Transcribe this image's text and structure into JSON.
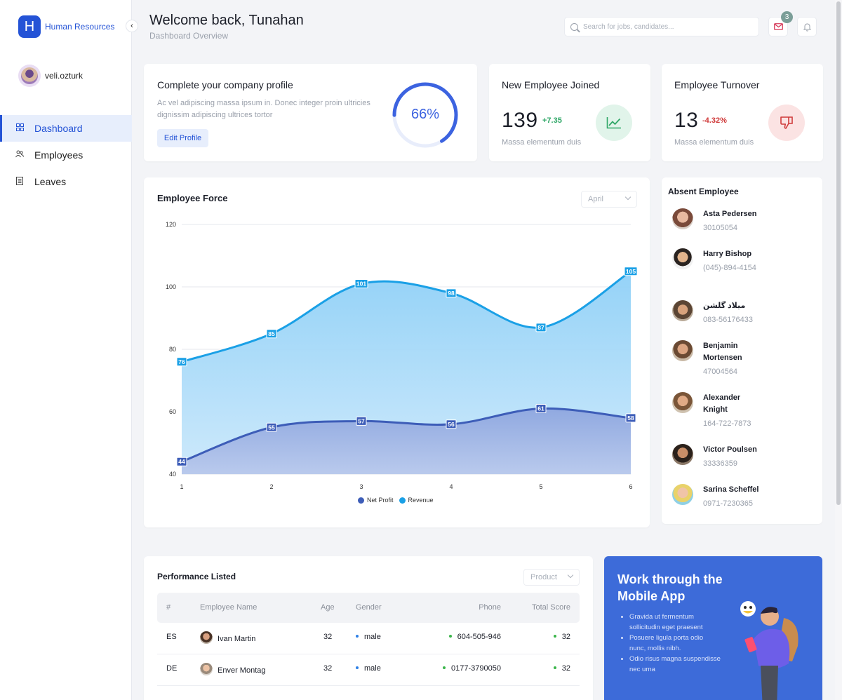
{
  "brand": {
    "logo_letter": "H",
    "name": "Human Resources"
  },
  "user": {
    "name": "veli.ozturk"
  },
  "nav": {
    "items": [
      {
        "label": "Dashboard",
        "icon": "grid-icon",
        "active": true
      },
      {
        "label": "Employees",
        "icon": "people-icon",
        "active": false
      },
      {
        "label": "Leaves",
        "icon": "document-icon",
        "active": false
      }
    ]
  },
  "header": {
    "welcome": "Welcome back, Tunahan",
    "subtitle": "Dashboard Overview",
    "search_placeholder": "Search for jobs, candidates...",
    "mail_count": "3"
  },
  "profile": {
    "title": "Complete your company profile",
    "description": "Ac vel adipiscing massa ipsum in. Donec integer proin ultricies dignissim adipiscing ultrices tortor",
    "button": "Edit Profile",
    "progress_label": "66%",
    "progress_value": 66
  },
  "stats": {
    "joined": {
      "title": "New Employee Joined",
      "value": "139",
      "delta": "+7.35",
      "caption": "Massa elementum duis",
      "color": "#2fa767"
    },
    "turnover": {
      "title": "Employee Turnover",
      "value": "13",
      "delta": "-4.32%",
      "caption": "Massa elementum duis",
      "color": "#d03b3b"
    }
  },
  "chart_card": {
    "title": "Employee Force",
    "month": "April"
  },
  "chart_data": {
    "type": "area",
    "x": [
      1,
      2,
      3,
      4,
      5,
      6
    ],
    "ylim": [
      40,
      120
    ],
    "yticks": [
      40,
      60,
      80,
      100,
      120
    ],
    "grid": true,
    "legend": "bottom",
    "series": [
      {
        "name": "Net Profit",
        "values": [
          44,
          55,
          57,
          56,
          61,
          58
        ],
        "color": "#3d5db8"
      },
      {
        "name": "Revenue",
        "values": [
          76,
          85,
          101,
          98,
          87,
          105
        ],
        "color": "#1aa0e6"
      }
    ]
  },
  "absent": {
    "title": "Absent Employee",
    "items": [
      {
        "name": "Asta Pedersen",
        "phone": "30105054"
      },
      {
        "name": "Harry Bishop",
        "phone": "(045)-894-4154"
      },
      {
        "name": "میلاد گلشن",
        "phone": "083-56176433"
      },
      {
        "name": "Benjamin Mortensen",
        "phone": "47004564"
      },
      {
        "name": "Alexander Knight",
        "phone": "164-722-7873"
      },
      {
        "name": "Victor Poulsen",
        "phone": "33336359"
      },
      {
        "name": "Sarina Scheffel",
        "phone": "0971-7230365"
      }
    ]
  },
  "performance": {
    "title": "Performance Listed",
    "filter": "Product",
    "columns": [
      "#",
      "Employee Name",
      "Age",
      "Gender",
      "Phone",
      "Total Score"
    ],
    "rows": [
      {
        "code": "ES",
        "name": "Ivan Martin",
        "age": "32",
        "gender": "male",
        "phone": "604-505-946",
        "score": "32"
      },
      {
        "code": "DE",
        "name": "Enver Montag",
        "age": "32",
        "gender": "male",
        "phone": "0177-3790050",
        "score": "32"
      }
    ]
  },
  "promo": {
    "title": "Work through the Mobile App",
    "bullets": [
      "Gravida ut fermentum sollicitudin eget praesent",
      "Posuere ligula porta odio nunc, mollis nibh.",
      "Odio risus magna suspendisse nec urna"
    ]
  }
}
